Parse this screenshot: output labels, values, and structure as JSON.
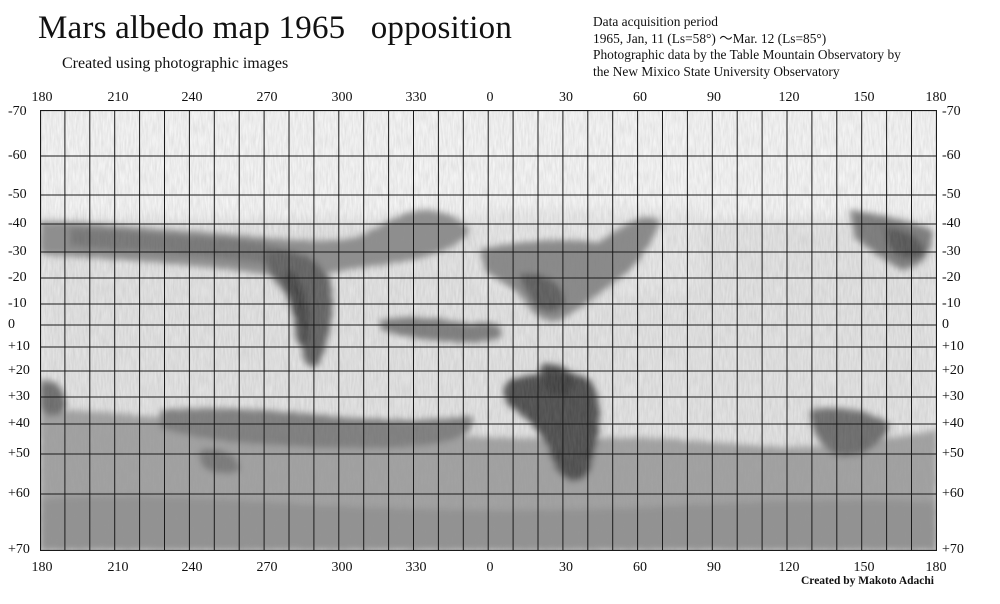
{
  "header": {
    "title": "Mars albedo map 1965   opposition",
    "subtitle": "Created using photographic images"
  },
  "info": {
    "lines": [
      "Data acquisition period",
      "1965, Jan, 11 (Ls=58°) ～Mar. 12 (Ls=85°)",
      "Photographic data by the Table Mountain Observatory by",
      "the New Mixico State University Observatory"
    ]
  },
  "footer": {
    "credit": "Created by Makoto Adachi"
  },
  "map": {
    "longitude_ticks": [
      "180",
      "210",
      "240",
      "270",
      "300",
      "330",
      "0",
      "30",
      "60",
      "90",
      "120",
      "150",
      "180"
    ],
    "latitude_ticks": [
      "-70",
      "-60",
      "-50",
      "-40",
      "-30",
      "-20",
      "-10",
      "0",
      "+10",
      "+20",
      "+30",
      "+40",
      "+50",
      "+60",
      "+70"
    ],
    "style": "pencil shaded grayscale albedo map with square grid"
  }
}
